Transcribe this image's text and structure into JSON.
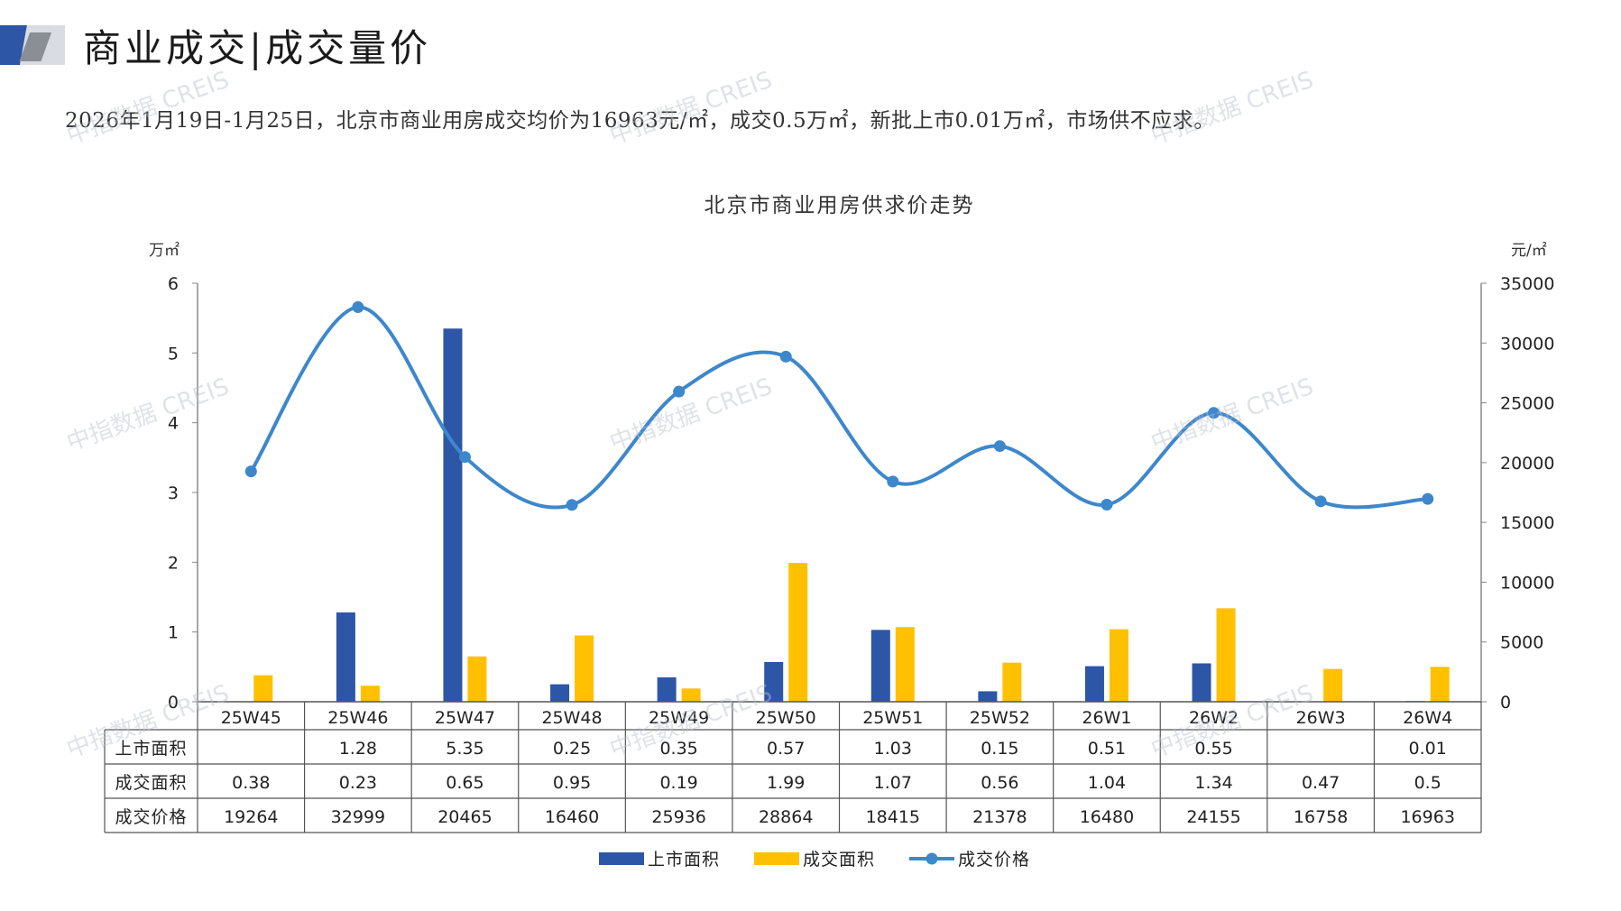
{
  "header": {
    "title": "商业成交|成交量价",
    "summary": "2026年1月19日-1月25日，北京市商业用房成交均价为16963元/㎡，成交0.5万㎡，新批上市0.01万㎡，市场供不应求。"
  },
  "watermark": "中指数据 CREIS",
  "colors": {
    "supply": "#2e56a6",
    "deal": "#ffc000",
    "price": "#3d87cc"
  },
  "chart_data": {
    "type": "bar",
    "title": "北京市商业用房供求价走势",
    "categories": [
      "25W45",
      "25W46",
      "25W47",
      "25W48",
      "25W49",
      "25W50",
      "25W51",
      "25W52",
      "26W1",
      "26W2",
      "26W3",
      "26W4"
    ],
    "y_left": {
      "unit": "万㎡",
      "min": 0,
      "max": 6,
      "ticks": [
        "0",
        "1",
        "2",
        "3",
        "4",
        "5",
        "6"
      ]
    },
    "y_right": {
      "unit": "元/㎡",
      "min": 0,
      "max": 35000,
      "ticks": [
        "0",
        "5000",
        "10000",
        "15000",
        "20000",
        "25000",
        "30000",
        "35000"
      ]
    },
    "series": [
      {
        "name": "上市面积",
        "type": "bar",
        "axis": "left",
        "values": [
          null,
          1.28,
          5.35,
          0.25,
          0.35,
          0.57,
          1.03,
          0.15,
          0.51,
          0.55,
          null,
          0.01
        ]
      },
      {
        "name": "成交面积",
        "type": "bar",
        "axis": "left",
        "values": [
          0.38,
          0.23,
          0.65,
          0.95,
          0.19,
          1.99,
          1.07,
          0.56,
          1.04,
          1.34,
          0.47,
          0.5
        ]
      },
      {
        "name": "成交价格",
        "type": "line",
        "axis": "right",
        "values": [
          19264,
          32999,
          20465,
          16460,
          25936,
          28864,
          18415,
          21378,
          16480,
          24155,
          16758,
          16963
        ]
      }
    ],
    "table": {
      "rows": [
        {
          "label": "上市面积",
          "cells": [
            "",
            "1.28",
            "5.35",
            "0.25",
            "0.35",
            "0.57",
            "1.03",
            "0.15",
            "0.51",
            "0.55",
            "",
            "0.01"
          ]
        },
        {
          "label": "成交面积",
          "cells": [
            "0.38",
            "0.23",
            "0.65",
            "0.95",
            "0.19",
            "1.99",
            "1.07",
            "0.56",
            "1.04",
            "1.34",
            "0.47",
            "0.5"
          ]
        },
        {
          "label": "成交价格",
          "cells": [
            "19264",
            "32999",
            "20465",
            "16460",
            "25936",
            "28864",
            "18415",
            "21378",
            "16480",
            "24155",
            "16758",
            "16963"
          ]
        }
      ]
    },
    "legend_position": "bottom",
    "grid": false
  }
}
